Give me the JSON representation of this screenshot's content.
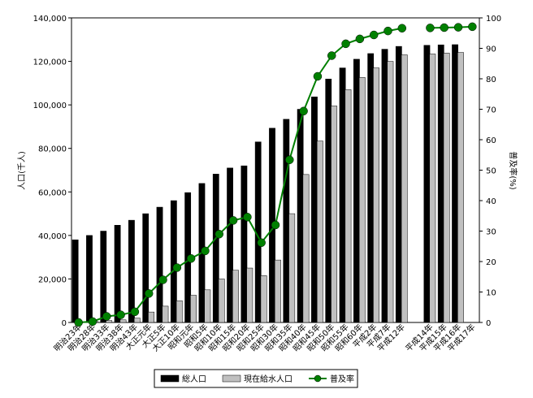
{
  "chart_data": {
    "type": "bar",
    "y_label": "人口(千人)",
    "y2_label": "普及率(%)",
    "categories": [
      "明治23年",
      "明治28年",
      "明治33年",
      "明治38年",
      "明治43年",
      "大正元年",
      "大正5年",
      "大正10年",
      "昭和元年",
      "昭和5年",
      "昭和10年",
      "昭和15年",
      "昭和20年",
      "昭和25年",
      "昭和30年",
      "昭和35年",
      "昭和40年",
      "昭和45年",
      "昭和50年",
      "昭和55年",
      "昭和60年",
      "平成2年",
      "平成7年",
      "平成12年",
      null,
      "平成14年",
      "平成15年",
      "平成16年",
      "平成17年"
    ],
    "series": [
      {
        "name": "総人口",
        "type": "bar",
        "color": "#000000",
        "values": [
          38000,
          40000,
          42000,
          44700,
          47000,
          50000,
          53000,
          56000,
          59700,
          63900,
          68200,
          71000,
          72000,
          83000,
          89300,
          93400,
          98000,
          103700,
          111900,
          117000,
          121000,
          123600,
          125600,
          126900,
          null,
          127400,
          127600,
          127700,
          null
        ]
      },
      {
        "name": "現在給水人口",
        "type": "bar",
        "color": "#c0c0c0",
        "values": [
          0,
          500,
          900,
          1200,
          2000,
          4800,
          7500,
          10000,
          12500,
          15000,
          20000,
          24000,
          25000,
          21500,
          28700,
          50000,
          68000,
          83400,
          99500,
          107000,
          112600,
          117000,
          120000,
          123000,
          null,
          123400,
          123800,
          124100,
          null
        ]
      },
      {
        "name": "普及率",
        "type": "line",
        "axis": "y2",
        "color": "#008000",
        "values": [
          0,
          0.3,
          2,
          2.5,
          3.5,
          9.5,
          14,
          18,
          21,
          23.5,
          29,
          33.5,
          34.6,
          26.2,
          32,
          53.4,
          69.4,
          80.8,
          87.6,
          91.5,
          93.1,
          94.4,
          95.7,
          96.6,
          null,
          96.7,
          96.8,
          96.9,
          97.1
        ]
      }
    ],
    "ylim": [
      0,
      140000
    ],
    "yticks": [
      0,
      {
        "value": 20000,
        "label": "20,000"
      },
      {
        "value": 40000,
        "label": "40,000"
      },
      {
        "value": 60000,
        "label": "60,000"
      },
      {
        "value": 80000,
        "label": "80,000"
      },
      {
        "value": 100000,
        "label": "100,000"
      },
      {
        "value": 120000,
        "label": "120,000"
      },
      {
        "value": 140000,
        "label": "140,000"
      }
    ],
    "y2lim": [
      0,
      100
    ],
    "y2ticks": [
      0,
      10,
      20,
      30,
      40,
      50,
      60,
      70,
      80,
      90,
      100
    ],
    "legend": "bottom"
  }
}
